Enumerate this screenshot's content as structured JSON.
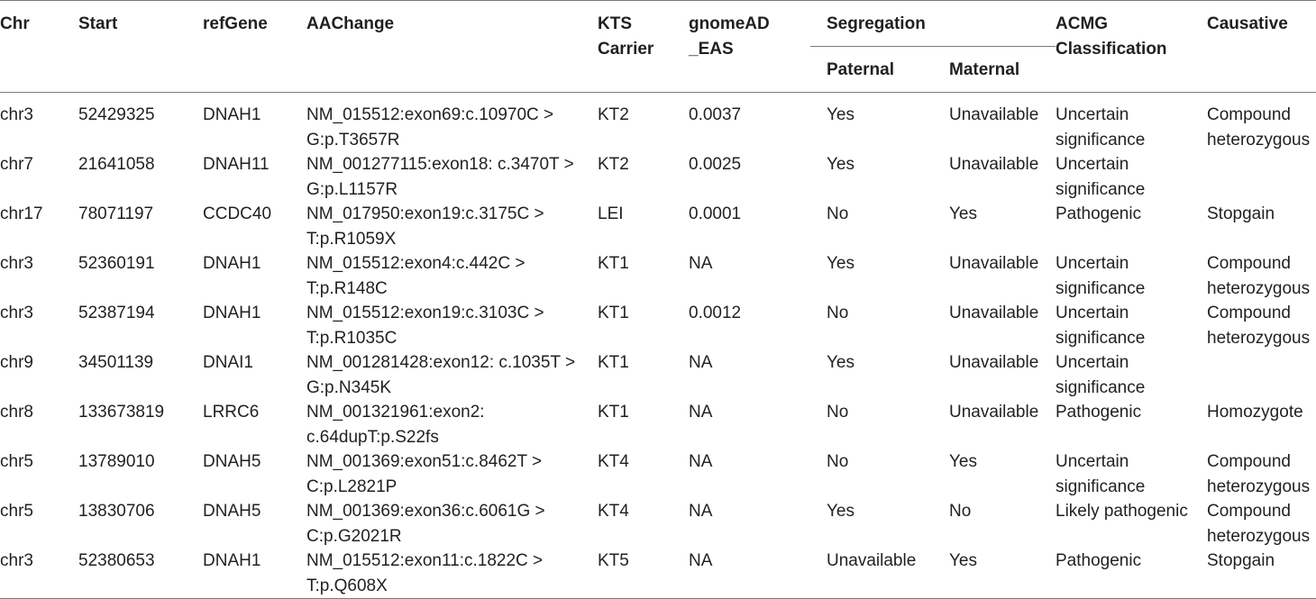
{
  "headers": {
    "chr": "Chr",
    "start": "Start",
    "refgene": "refGene",
    "aachange": "AAChange",
    "kts_carrier": "KTS Carrier",
    "gnomead_eas": "gnomeAD _EAS",
    "segregation": "Segregation",
    "paternal": "Paternal",
    "maternal": "Maternal",
    "acmg": "ACMG Classification",
    "causative": "Causative"
  },
  "rows": [
    {
      "chr": "chr3",
      "start": "52429325",
      "refgene": "DNAH1",
      "aachange": "NM_015512:exon69:c.10970C > G:p.T3657R",
      "kts": "KT2",
      "gnomad": "0.0037",
      "paternal": "Yes",
      "maternal": "Unavailable",
      "acmg": "Uncertain significance",
      "causative": "Compound heterozygous"
    },
    {
      "chr": "chr7",
      "start": "21641058",
      "refgene": "DNAH11",
      "aachange": "NM_001277115:exon18: c.3470T > G:p.L1157R",
      "kts": "KT2",
      "gnomad": "0.0025",
      "paternal": "Yes",
      "maternal": "Unavailable",
      "acmg": "Uncertain significance",
      "causative": ""
    },
    {
      "chr": "chr17",
      "start": "78071197",
      "refgene": "CCDC40",
      "aachange": "NM_017950:exon19:c.3175C > T:p.R1059X",
      "kts": "LEI",
      "gnomad": "0.0001",
      "paternal": "No",
      "maternal": "Yes",
      "acmg": "Pathogenic",
      "causative": "Stopgain"
    },
    {
      "chr": "chr3",
      "start": "52360191",
      "refgene": "DNAH1",
      "aachange": "NM_015512:exon4:c.442C > T:p.R148C",
      "kts": "KT1",
      "gnomad": "NA",
      "paternal": "Yes",
      "maternal": "Unavailable",
      "acmg": "Uncertain significance",
      "causative": "Compound heterozygous"
    },
    {
      "chr": "chr3",
      "start": "52387194",
      "refgene": "DNAH1",
      "aachange": "NM_015512:exon19:c.3103C > T:p.R1035C",
      "kts": "KT1",
      "gnomad": "0.0012",
      "paternal": "No",
      "maternal": "Unavailable",
      "acmg": "Uncertain significance",
      "causative": "Compound heterozygous"
    },
    {
      "chr": "chr9",
      "start": "34501139",
      "refgene": "DNAI1",
      "aachange": "NM_001281428:exon12: c.1035T > G:p.N345K",
      "kts": "KT1",
      "gnomad": "NA",
      "paternal": "Yes",
      "maternal": "Unavailable",
      "acmg": "Uncertain significance",
      "causative": ""
    },
    {
      "chr": "chr8",
      "start": "133673819",
      "refgene": "LRRC6",
      "aachange": "NM_001321961:exon2: c.64dupT:p.S22fs",
      "kts": "KT1",
      "gnomad": "NA",
      "paternal": "No",
      "maternal": "Unavailable",
      "acmg": "Pathogenic",
      "causative": "Homozygote"
    },
    {
      "chr": "chr5",
      "start": "13789010",
      "refgene": "DNAH5",
      "aachange": "NM_001369:exon51:c.8462T > C:p.L2821P",
      "kts": "KT4",
      "gnomad": "NA",
      "paternal": "No",
      "maternal": "Yes",
      "acmg": "Uncertain significance",
      "causative": "Compound heterozygous"
    },
    {
      "chr": "chr5",
      "start": "13830706",
      "refgene": "DNAH5",
      "aachange": "NM_001369:exon36:c.6061G > C:p.G2021R",
      "kts": "KT4",
      "gnomad": "NA",
      "paternal": "Yes",
      "maternal": "No",
      "acmg": "Likely pathogenic",
      "causative": "Compound heterozygous"
    },
    {
      "chr": "chr3",
      "start": "52380653",
      "refgene": "DNAH1",
      "aachange": "NM_015512:exon11:c.1822C > T:p.Q608X",
      "kts": "KT5",
      "gnomad": "NA",
      "paternal": "Unavailable",
      "maternal": "Yes",
      "acmg": "Pathogenic",
      "causative": "Stopgain"
    }
  ]
}
